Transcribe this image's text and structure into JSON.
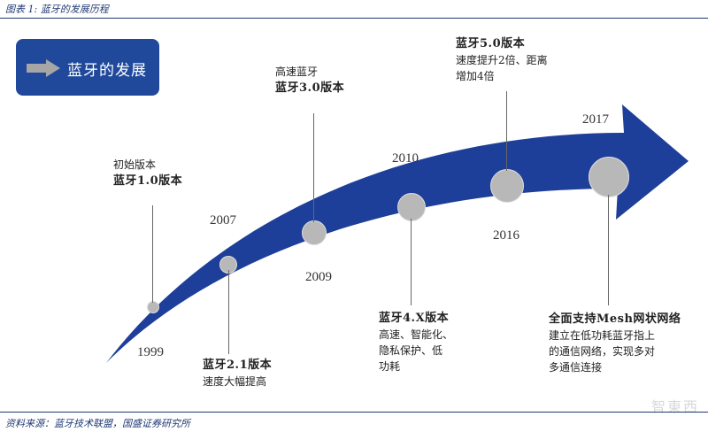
{
  "caption": "图表 1: 蓝牙的发展历程",
  "source": "资料来源：蓝牙技术联盟，国盛证券研究所",
  "badge": {
    "label": "蓝牙的发展"
  },
  "years": {
    "y1999": "1999",
    "y2007": "2007",
    "y2009": "2009",
    "y2010": "2010",
    "y2016": "2016",
    "y2017": "2017"
  },
  "milestones": {
    "v1": {
      "line1": "初始版本",
      "line2": "蓝牙1.0版本"
    },
    "v2": {
      "line1": "蓝牙2.1版本",
      "line2": "速度大幅提高"
    },
    "v3": {
      "line1": "高速蓝牙",
      "line2": "蓝牙3.0版本"
    },
    "v4": {
      "line1": "蓝牙4.X版本",
      "line2": "高速、智能化、",
      "line3": "隐私保护、低",
      "line4": "功耗"
    },
    "v5": {
      "line1": "蓝牙5.0版本",
      "line2": "速度提升2倍、距离",
      "line3": "增加4倍"
    },
    "mesh": {
      "line1": "全面支持Mesh网状网络",
      "line2": "建立在低功耗蓝牙指上",
      "line3": "的通信网络，实现多对",
      "line4": "多通信连接"
    }
  },
  "watermark": "智東西",
  "colors": {
    "arrow": "#1e3f99",
    "badge": "#20499c",
    "dot": "#b8b8b8"
  }
}
